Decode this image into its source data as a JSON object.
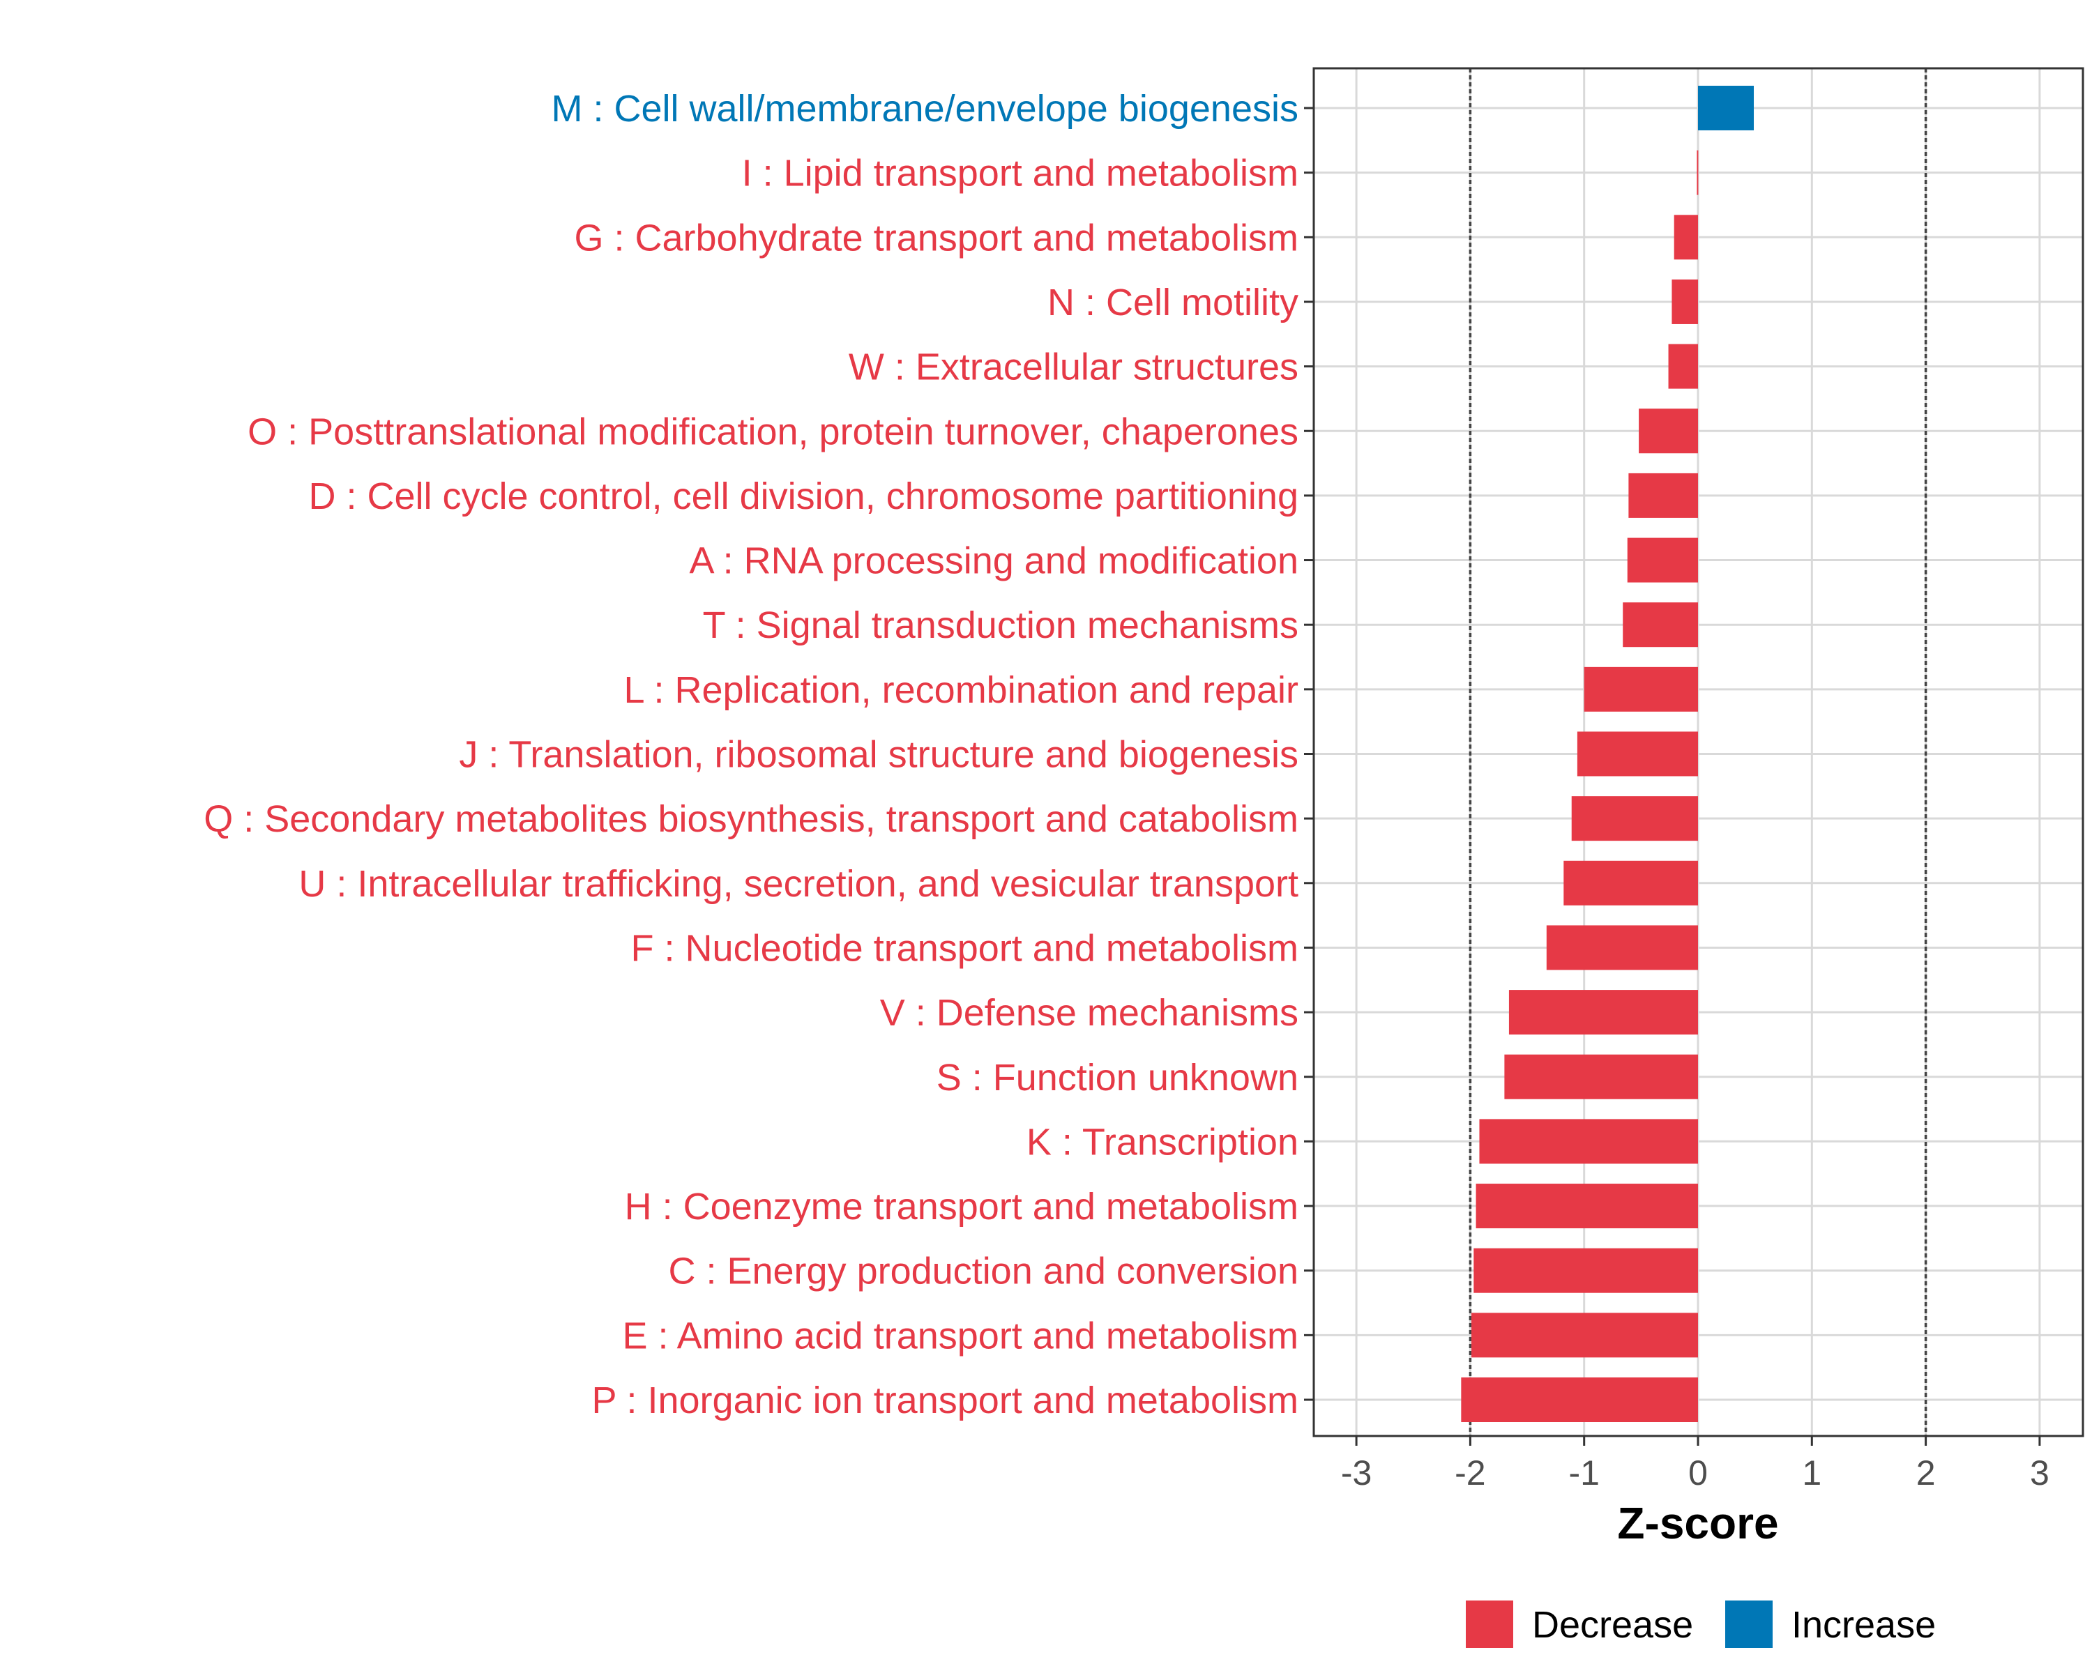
{
  "chart_data": {
    "type": "bar",
    "orientation": "horizontal",
    "title": "",
    "xlabel": "Z-score",
    "ylabel": "",
    "xlim": [
      -3.35,
      3.35
    ],
    "xticks": [
      -3,
      -2,
      -1,
      0,
      1,
      2,
      3
    ],
    "xtick_labels": [
      "-3",
      "-2",
      "-1",
      "0",
      "1",
      "2",
      "3"
    ],
    "reference_lines": [
      -2,
      2
    ],
    "grid": true,
    "legend_position": "bottom",
    "colors": {
      "Decrease": "#e63946",
      "Increase": "#0077b6"
    },
    "legend": [
      {
        "label": "Decrease",
        "color": "#e63946"
      },
      {
        "label": "Increase",
        "color": "#0077b6"
      }
    ],
    "categories": [
      "M : Cell wall/membrane/envelope biogenesis",
      "I : Lipid transport and metabolism",
      "G : Carbohydrate transport and metabolism",
      "N : Cell motility",
      "W : Extracellular structures",
      "O : Posttranslational modification, protein turnover, chaperones",
      "D : Cell cycle control, cell division, chromosome partitioning",
      "A : RNA processing and modification",
      "T : Signal transduction mechanisms",
      "L : Replication, recombination and repair",
      "J : Translation, ribosomal structure and biogenesis",
      "Q : Secondary metabolites biosynthesis, transport and catabolism",
      "U : Intracellular trafficking, secretion, and vesicular transport",
      "F : Nucleotide transport and metabolism",
      "V : Defense mechanisms",
      "S : Function unknown",
      "K : Transcription",
      "H : Coenzyme transport and metabolism",
      "C : Energy production and conversion",
      "E : Amino acid transport and metabolism",
      "P : Inorganic ion transport and metabolism"
    ],
    "values": [
      0.49,
      -0.01,
      -0.21,
      -0.23,
      -0.26,
      -0.52,
      -0.61,
      -0.62,
      -0.66,
      -1.0,
      -1.06,
      -1.11,
      -1.18,
      -1.33,
      -1.66,
      -1.7,
      -1.92,
      -1.95,
      -1.97,
      -1.99,
      -2.08
    ],
    "direction": [
      "Increase",
      "Decrease",
      "Decrease",
      "Decrease",
      "Decrease",
      "Decrease",
      "Decrease",
      "Decrease",
      "Decrease",
      "Decrease",
      "Decrease",
      "Decrease",
      "Decrease",
      "Decrease",
      "Decrease",
      "Decrease",
      "Decrease",
      "Decrease",
      "Decrease",
      "Decrease",
      "Decrease"
    ]
  }
}
